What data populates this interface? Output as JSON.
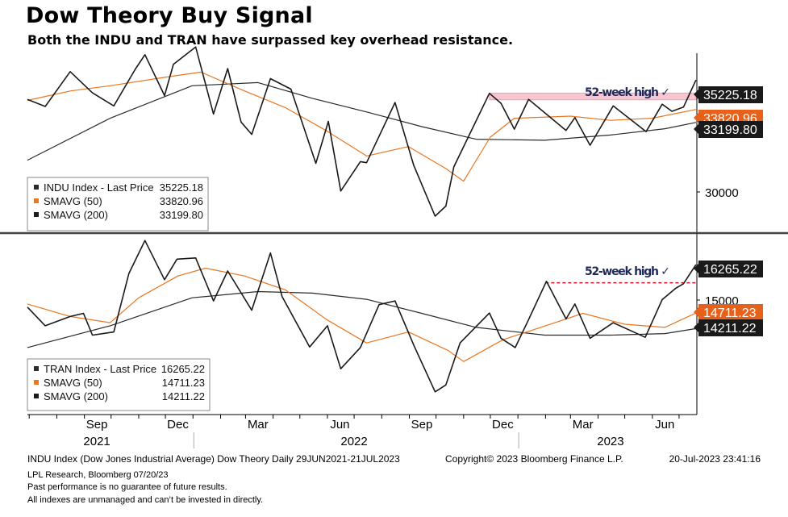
{
  "title": "Dow Theory Buy Signal",
  "subtitle": "Both the INDU and TRAN have surpassed key overhead resistance.",
  "footer": {
    "source_left": "INDU Index (Dow Jones Industrial Average) Dow Theory  Daily 29JUN2021-21JUL2023",
    "source_mid": "Copyright© 2023 Bloomberg Finance L.P.",
    "source_right": "20-Jul-2023 23:41:16",
    "note1": "LPL Research, Bloomberg 07/20/23",
    "note2": "Past performance is no guarantee of future results.",
    "note3": "All indexes are unmanaged and can’t be invested in directly."
  },
  "colors": {
    "price": "#1a1a1a",
    "sma50": "#e87722",
    "sma200": "#2b2b2b",
    "resistance_band": "#f7c6d0",
    "resistance_line": "#d0112b",
    "annotation": "#1f2a5a"
  },
  "chart_data": [
    {
      "type": "line",
      "panel": "top",
      "annotation": "52-week high ✓",
      "yaxis_ticks": [
        "30000"
      ],
      "ylim": [
        28000,
        36500
      ],
      "x_start": "2021-06-29",
      "x_end": "2023-07-21",
      "last_value_tags": [
        "35225.18",
        "33820.96",
        "33199.80"
      ],
      "resistance": {
        "style": "band",
        "from": "2022-11-30",
        "to": "2023-07-20",
        "y_low": 34280,
        "y_high": 34600
      },
      "legend": [
        {
          "label": "INDU Index - Last Price",
          "value": "35225.18"
        },
        {
          "label": "SMAVG (50)",
          "value": "33820.96"
        },
        {
          "label": "SMAVG (200)",
          "value": "33199.80"
        }
      ],
      "series": [
        {
          "name": "INDU Index - Last Price",
          "role": "price",
          "points": [
            [
              "2021-06-29",
              34300
            ],
            [
              "2021-07-19",
              33960
            ],
            [
              "2021-08-16",
              35625
            ],
            [
              "2021-09-10",
              34610
            ],
            [
              "2021-10-04",
              33990
            ],
            [
              "2021-10-28",
              35730
            ],
            [
              "2021-11-08",
              36430
            ],
            [
              "2021-11-30",
              34480
            ],
            [
              "2021-12-10",
              35970
            ],
            [
              "2022-01-04",
              36800
            ],
            [
              "2022-01-24",
              33600
            ],
            [
              "2022-02-09",
              35770
            ],
            [
              "2022-02-24",
              33220
            ],
            [
              "2022-03-08",
              32630
            ],
            [
              "2022-03-29",
              35290
            ],
            [
              "2022-04-21",
              34790
            ],
            [
              "2022-05-19",
              31250
            ],
            [
              "2022-06-02",
              33250
            ],
            [
              "2022-06-16",
              29930
            ],
            [
              "2022-07-08",
              31330
            ],
            [
              "2022-07-15",
              31280
            ],
            [
              "2022-08-16",
              34150
            ],
            [
              "2022-09-06",
              31150
            ],
            [
              "2022-09-30",
              28730
            ],
            [
              "2022-10-12",
              29210
            ],
            [
              "2022-10-21",
              31080
            ],
            [
              "2022-11-30",
              34590
            ],
            [
              "2022-12-13",
              34110
            ],
            [
              "2022-12-28",
              32880
            ],
            [
              "2023-01-13",
              34300
            ],
            [
              "2023-02-24",
              32820
            ],
            [
              "2023-03-06",
              33430
            ],
            [
              "2023-03-23",
              32110
            ],
            [
              "2023-04-18",
              33990
            ],
            [
              "2023-05-25",
              32760
            ],
            [
              "2023-06-12",
              34070
            ],
            [
              "2023-06-23",
              33730
            ],
            [
              "2023-07-06",
              33930
            ],
            [
              "2023-07-20",
              35225
            ]
          ]
        },
        {
          "name": "SMAVG (50)",
          "role": "sma50",
          "points": [
            [
              "2021-06-29",
              34250
            ],
            [
              "2021-08-16",
              34700
            ],
            [
              "2021-09-30",
              34950
            ],
            [
              "2021-11-30",
              35350
            ],
            [
              "2022-01-10",
              35600
            ],
            [
              "2022-02-28",
              34700
            ],
            [
              "2022-04-15",
              33900
            ],
            [
              "2022-05-31",
              32800
            ],
            [
              "2022-07-15",
              31600
            ],
            [
              "2022-08-31",
              32050
            ],
            [
              "2022-10-12",
              31000
            ],
            [
              "2022-11-01",
              30400
            ],
            [
              "2022-12-01",
              32500
            ],
            [
              "2022-12-28",
              33400
            ],
            [
              "2023-03-01",
              33500
            ],
            [
              "2023-04-15",
              33300
            ],
            [
              "2023-06-01",
              33400
            ],
            [
              "2023-07-20",
              33821
            ]
          ]
        },
        {
          "name": "SMAVG (200)",
          "role": "sma200",
          "points": [
            [
              "2021-06-29",
              31400
            ],
            [
              "2021-09-30",
              33400
            ],
            [
              "2021-12-31",
              34950
            ],
            [
              "2022-03-15",
              35100
            ],
            [
              "2022-05-15",
              34350
            ],
            [
              "2022-07-15",
              33700
            ],
            [
              "2022-09-15",
              33000
            ],
            [
              "2022-11-15",
              32400
            ],
            [
              "2023-01-31",
              32350
            ],
            [
              "2023-04-15",
              32600
            ],
            [
              "2023-06-15",
              32900
            ],
            [
              "2023-07-20",
              33200
            ]
          ]
        }
      ]
    },
    {
      "type": "line",
      "panel": "bottom",
      "annotation": "52-week high ✓",
      "yaxis_ticks": [
        "15000"
      ],
      "ylim": [
        11500,
        17200
      ],
      "x_start": "2021-06-29",
      "x_end": "2023-07-21",
      "last_value_tags": [
        "16265.22",
        "14711.23",
        "14211.22"
      ],
      "resistance": {
        "style": "dashed",
        "from": "2023-02-01",
        "to": "2023-07-20",
        "y": 15680
      },
      "legend": [
        {
          "label": "TRAN Index - Last Price",
          "value": "16265.22"
        },
        {
          "label": "SMAVG (50)",
          "value": "14711.23"
        },
        {
          "label": "SMAVG (200)",
          "value": "14211.22"
        }
      ],
      "series": [
        {
          "name": "TRAN Index - Last Price",
          "role": "price",
          "points": [
            [
              "2021-06-29",
              14900
            ],
            [
              "2021-07-19",
              14300
            ],
            [
              "2021-08-16",
              14600
            ],
            [
              "2021-08-31",
              14700
            ],
            [
              "2021-09-10",
              14000
            ],
            [
              "2021-10-04",
              14100
            ],
            [
              "2021-10-21",
              15980
            ],
            [
              "2021-11-08",
              17040
            ],
            [
              "2021-11-30",
              15780
            ],
            [
              "2021-12-14",
              16440
            ],
            [
              "2022-01-04",
              16480
            ],
            [
              "2022-01-24",
              15100
            ],
            [
              "2022-02-09",
              16060
            ],
            [
              "2022-03-08",
              14800
            ],
            [
              "2022-03-29",
              16640
            ],
            [
              "2022-04-11",
              15240
            ],
            [
              "2022-05-12",
              13620
            ],
            [
              "2022-06-01",
              14300
            ],
            [
              "2022-06-16",
              12920
            ],
            [
              "2022-07-08",
              13600
            ],
            [
              "2022-07-29",
              14980
            ],
            [
              "2022-08-16",
              15100
            ],
            [
              "2022-09-06",
              13680
            ],
            [
              "2022-09-30",
              12180
            ],
            [
              "2022-10-12",
              12400
            ],
            [
              "2022-10-28",
              13750
            ],
            [
              "2022-11-30",
              14710
            ],
            [
              "2022-12-13",
              13900
            ],
            [
              "2022-12-29",
              13600
            ],
            [
              "2023-01-13",
              14500
            ],
            [
              "2023-02-02",
              15730
            ],
            [
              "2023-02-24",
              14520
            ],
            [
              "2023-03-06",
              15000
            ],
            [
              "2023-03-23",
              13900
            ],
            [
              "2023-04-18",
              14400
            ],
            [
              "2023-05-24",
              13930
            ],
            [
              "2023-06-12",
              15140
            ],
            [
              "2023-06-27",
              15500
            ],
            [
              "2023-07-06",
              15650
            ],
            [
              "2023-07-20",
              16265
            ]
          ]
        },
        {
          "name": "SMAVG (50)",
          "role": "sma50",
          "points": [
            [
              "2021-06-29",
              15000
            ],
            [
              "2021-08-16",
              14600
            ],
            [
              "2021-09-30",
              14400
            ],
            [
              "2021-11-01",
              15200
            ],
            [
              "2021-12-15",
              15900
            ],
            [
              "2022-01-15",
              16150
            ],
            [
              "2022-02-28",
              15900
            ],
            [
              "2022-04-15",
              15450
            ],
            [
              "2022-05-31",
              14500
            ],
            [
              "2022-07-15",
              13750
            ],
            [
              "2022-08-31",
              14100
            ],
            [
              "2022-10-15",
              13500
            ],
            [
              "2022-11-01",
              13150
            ],
            [
              "2022-12-15",
              13850
            ],
            [
              "2023-02-01",
              14300
            ],
            [
              "2023-03-15",
              14700
            ],
            [
              "2023-05-01",
              14350
            ],
            [
              "2023-06-15",
              14250
            ],
            [
              "2023-07-20",
              14711
            ]
          ]
        },
        {
          "name": "SMAVG (200)",
          "role": "sma200",
          "points": [
            [
              "2021-06-29",
              13600
            ],
            [
              "2021-09-30",
              14300
            ],
            [
              "2021-12-31",
              15200
            ],
            [
              "2022-03-15",
              15400
            ],
            [
              "2022-05-15",
              15350
            ],
            [
              "2022-07-15",
              15150
            ],
            [
              "2022-09-15",
              14700
            ],
            [
              "2022-11-15",
              14250
            ],
            [
              "2023-01-31",
              14000
            ],
            [
              "2023-04-15",
              14000
            ],
            [
              "2023-06-15",
              14050
            ],
            [
              "2023-07-20",
              14211
            ]
          ]
        }
      ]
    }
  ],
  "xaxis": {
    "months": [
      {
        "label": "Sep",
        "date": "2021-09-15"
      },
      {
        "label": "Dec",
        "date": "2021-12-15"
      },
      {
        "label": "Mar",
        "date": "2022-03-15"
      },
      {
        "label": "Jun",
        "date": "2022-06-15"
      },
      {
        "label": "Sep",
        "date": "2022-09-15"
      },
      {
        "label": "Dec",
        "date": "2022-12-15"
      },
      {
        "label": "Mar",
        "date": "2023-03-15"
      },
      {
        "label": "Jun",
        "date": "2023-06-15"
      }
    ],
    "years": [
      {
        "label": "2021",
        "date": "2021-09-15"
      },
      {
        "label": "2022",
        "date": "2022-07-01"
      },
      {
        "label": "2023",
        "date": "2023-04-15"
      }
    ],
    "year_separators": [
      "2022-01-01",
      "2023-01-01"
    ]
  }
}
